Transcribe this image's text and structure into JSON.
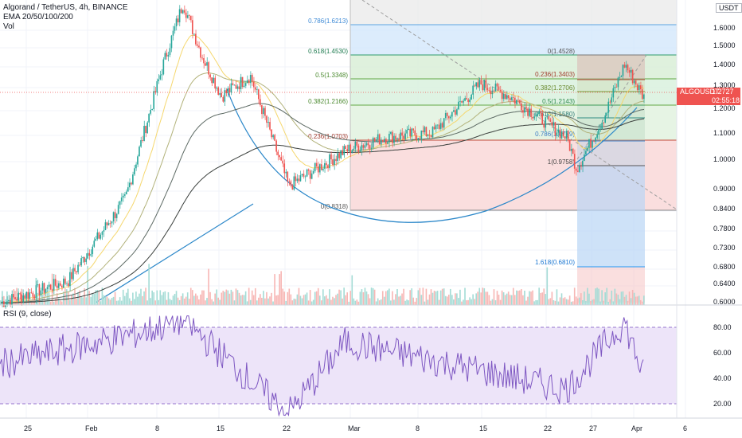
{
  "header": {
    "title": "Algorand / TetherUS, 4h, BINANCE",
    "indicator": "EMA 20/50/100/200",
    "volume": "Vol",
    "currency": "USDT"
  },
  "price_tag": {
    "symbol": "ALGOUSDT",
    "price": "1.2727",
    "countdown": "02:55:18"
  },
  "rsi_label": "RSI (9, close)",
  "colors": {
    "up": "#26a69a",
    "down": "#ef5350",
    "ema20": "#f5d76e",
    "ema50": "#b2b27a",
    "ema100": "#5d6a64",
    "ema200": "#3a3f3c",
    "rsi": "#7e57c2",
    "rsi_band": "#ede4f9",
    "fib_line_green": "#4caf50",
    "fib_blue": "#2196f3",
    "arc": "#2b87c9"
  },
  "chart_data": [
    {
      "type": "candlestick",
      "title": "Algorand / TetherUS, 4h, BINANCE",
      "y_scale": "log",
      "ylim": [
        0.595,
        1.82
      ],
      "x_ticks": [
        "25",
        "Feb",
        "8",
        "15",
        "22",
        "Mar",
        "8",
        "15",
        "22",
        "27",
        "Apr",
        "6"
      ],
      "y_ticks": [
        "1.6000",
        "1.5000",
        "1.4000",
        "1.3000",
        "1.2000",
        "1.1000",
        "1.0000",
        "0.9000",
        "0.8400",
        "0.7800",
        "0.7300",
        "0.6800",
        "0.6400",
        "0.6000"
      ],
      "key_closes": [
        {
          "date": "Jan 24",
          "close": 0.6
        },
        {
          "date": "Jan 31",
          "close": 0.65
        },
        {
          "date": "Feb 6",
          "close": 0.88
        },
        {
          "date": "Feb 10",
          "close": 1.45
        },
        {
          "date": "Feb 12",
          "close": 1.8
        },
        {
          "date": "Feb 14",
          "close": 1.48
        },
        {
          "date": "Feb 16",
          "close": 1.28
        },
        {
          "date": "Feb 19",
          "close": 1.38
        },
        {
          "date": "Feb 23",
          "close": 0.92
        },
        {
          "date": "Mar 1",
          "close": 1.05
        },
        {
          "date": "Mar 5",
          "close": 1.1
        },
        {
          "date": "Mar 10",
          "close": 1.12
        },
        {
          "date": "Mar 15",
          "close": 1.34
        },
        {
          "date": "Mar 18",
          "close": 1.28
        },
        {
          "date": "Mar 24",
          "close": 1.1
        },
        {
          "date": "Mar 25",
          "close": 0.98
        },
        {
          "date": "Mar 28",
          "close": 1.2
        },
        {
          "date": "Mar 30",
          "close": 1.44
        },
        {
          "date": "Apr 1",
          "close": 1.2727
        }
      ],
      "fib_retracement_left": [
        {
          "label": "0.786(1.6213)",
          "value": 1.6213
        },
        {
          "label": "0.618(1.4530)",
          "value": 1.453
        },
        {
          "label": "0.5(1.3348)",
          "value": 1.3348
        },
        {
          "label": "0.382(1.2166)",
          "value": 1.2166
        },
        {
          "label": "0.236(1.0703)",
          "value": 1.0703
        },
        {
          "label": "0(0.8318)",
          "value": 0.8318
        }
      ],
      "fib_retracement_right": [
        {
          "label": "0(1.4528)",
          "value": 1.4528
        },
        {
          "label": "0.236(1.3403)",
          "value": 1.3403
        },
        {
          "label": "0.382(1.2706)",
          "value": 1.2706
        },
        {
          "label": "0.5(1.2143)",
          "value": 1.2143
        },
        {
          "label": "0.618(1.1580)",
          "value": 1.158
        },
        {
          "label": "0.786(1.0779)",
          "value": 1.0779
        },
        {
          "label": "1(0.9758)",
          "value": 0.9758
        },
        {
          "label": "1.618(0.6810)",
          "value": 0.681
        }
      ]
    },
    {
      "type": "line",
      "title": "RSI (9, close)",
      "ylim": [
        10,
        92
      ],
      "y_ticks": [
        "80.00",
        "60.00",
        "40.00",
        "20.00"
      ],
      "band": [
        20,
        80
      ],
      "key_values": [
        {
          "date": "Jan 24",
          "value": 52
        },
        {
          "date": "Feb 8",
          "value": 78
        },
        {
          "date": "Feb 12",
          "value": 88
        },
        {
          "date": "Feb 23",
          "value": 12
        },
        {
          "date": "Mar 1",
          "value": 70
        },
        {
          "date": "Mar 24",
          "value": 32
        },
        {
          "date": "Mar 30",
          "value": 86
        },
        {
          "date": "Apr 1",
          "value": 44
        }
      ]
    }
  ]
}
